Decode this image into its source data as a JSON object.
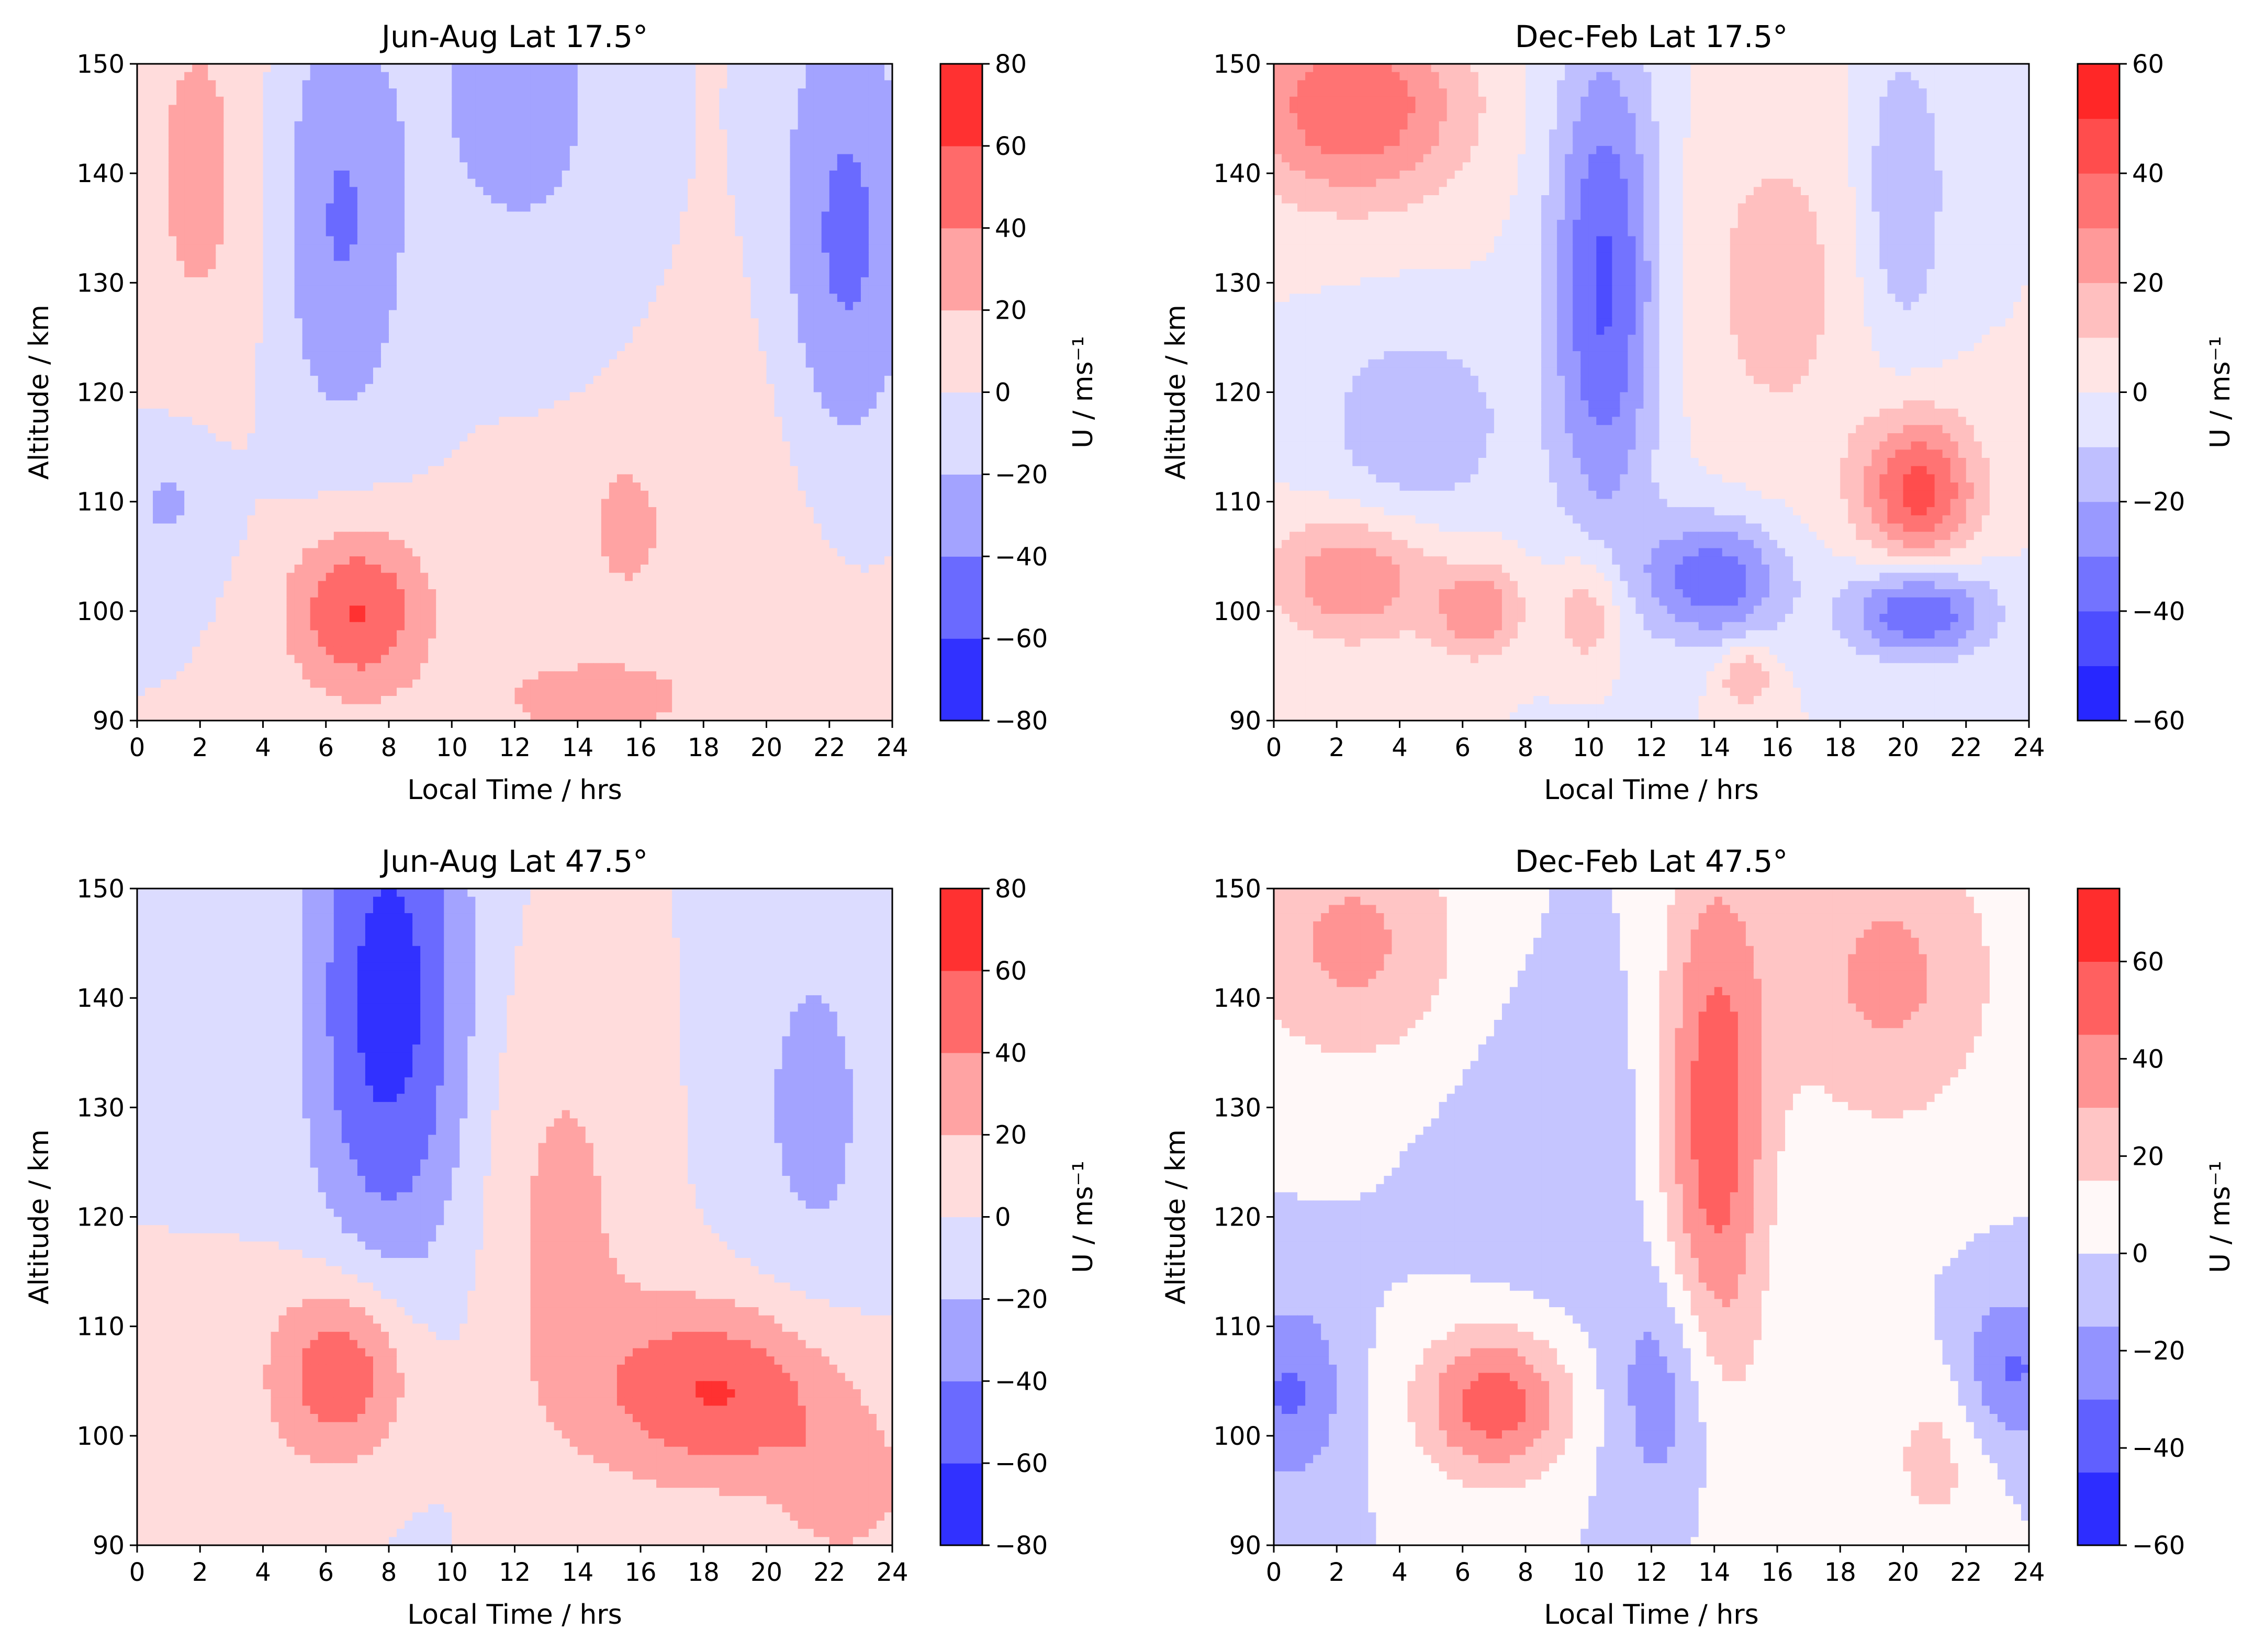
{
  "chart_data": [
    {
      "type": "heatmap",
      "title": "Jun-Aug Lat 17.5°",
      "xlabel": "Local Time / hrs",
      "ylabel": "Altitude / km",
      "colorbar_label": "U / ms⁻¹",
      "xlim": [
        0,
        24
      ],
      "ylim": [
        90,
        150
      ],
      "xticks": [
        0,
        2,
        4,
        6,
        8,
        10,
        12,
        14,
        16,
        18,
        20,
        22,
        24
      ],
      "yticks": [
        90,
        100,
        110,
        120,
        130,
        140,
        150
      ],
      "levels": [
        -80,
        -60,
        -40,
        -20,
        0,
        20,
        40,
        60,
        80
      ],
      "colorbar_ticks": [
        -80,
        -60,
        -40,
        -20,
        0,
        20,
        40,
        60,
        80
      ],
      "features": [
        {
          "x": 7,
          "y": 100,
          "value": 62,
          "sx": 1.6,
          "sy": 5.5
        },
        {
          "x": 6.5,
          "y": 136,
          "value": -42,
          "sx": 1.5,
          "sy": 14
        },
        {
          "x": 22.5,
          "y": 133,
          "value": -52,
          "sx": 1.6,
          "sy": 16
        },
        {
          "x": 12,
          "y": 148,
          "value": -34,
          "sx": 1.8,
          "sy": 10
        },
        {
          "x": 19,
          "y": 115,
          "value": 18,
          "sx": 4,
          "sy": 22
        },
        {
          "x": 2,
          "y": 140,
          "value": 26,
          "sx": 1.5,
          "sy": 14
        },
        {
          "x": 15.5,
          "y": 108,
          "value": 25,
          "sx": 0.7,
          "sy": 4
        },
        {
          "x": 14,
          "y": 92,
          "value": 24,
          "sx": 2.5,
          "sy": 3
        },
        {
          "x": 1,
          "y": 110,
          "value": -24,
          "sx": 1.2,
          "sy": 5
        },
        {
          "x": 16,
          "y": 130,
          "value": -12,
          "sx": 3,
          "sy": 15
        }
      ],
      "colors_used": [
        "#2020ff",
        "#5c5cff",
        "#9a9aff",
        "#dedeff",
        "#ffdede",
        "#ff9a9a",
        "#ff5c5c",
        "#ff2020"
      ]
    },
    {
      "type": "heatmap",
      "title": "Dec-Feb Lat 17.5°",
      "xlabel": "Local Time / hrs",
      "ylabel": "Altitude / km",
      "colorbar_label": "U / ms⁻¹",
      "xlim": [
        0,
        24
      ],
      "ylim": [
        90,
        150
      ],
      "xticks": [
        0,
        2,
        4,
        6,
        8,
        10,
        12,
        14,
        16,
        18,
        20,
        22,
        24
      ],
      "yticks": [
        90,
        100,
        110,
        120,
        130,
        140,
        150
      ],
      "levels": [
        -60,
        -50,
        -40,
        -30,
        -20,
        -10,
        0,
        10,
        20,
        30,
        40,
        50,
        60
      ],
      "colorbar_ticks": [
        -60,
        -40,
        -20,
        0,
        20,
        40,
        60
      ],
      "features": [
        {
          "x": 2.5,
          "y": 146,
          "value": 40,
          "sx": 2.5,
          "sy": 6
        },
        {
          "x": 10.5,
          "y": 130,
          "value": -42,
          "sx": 1.2,
          "sy": 16
        },
        {
          "x": 20.5,
          "y": 111,
          "value": 44,
          "sx": 1.3,
          "sy": 5
        },
        {
          "x": 2.5,
          "y": 103,
          "value": 30,
          "sx": 1.8,
          "sy": 4
        },
        {
          "x": 14,
          "y": 103,
          "value": -38,
          "sx": 1.6,
          "sy": 4
        },
        {
          "x": 20.5,
          "y": 100,
          "value": -42,
          "sx": 1.6,
          "sy": 3
        },
        {
          "x": 4.5,
          "y": 117,
          "value": -20,
          "sx": 2,
          "sy": 6
        },
        {
          "x": 6.5,
          "y": 100,
          "value": 28,
          "sx": 1,
          "sy": 3
        },
        {
          "x": 16,
          "y": 130,
          "value": 14,
          "sx": 2,
          "sy": 12
        },
        {
          "x": 20,
          "y": 138,
          "value": -20,
          "sx": 1,
          "sy": 10
        },
        {
          "x": 10,
          "y": 100,
          "value": 22,
          "sx": 0.8,
          "sy": 4
        },
        {
          "x": 15,
          "y": 94,
          "value": 22,
          "sx": 0.6,
          "sy": 2
        }
      ],
      "colors_used": [
        "#4c4cff",
        "#6a6aff",
        "#8888ff",
        "#b6b6ff",
        "#e2e2ff",
        "#ffe2e2",
        "#ffb6b6",
        "#ff8888",
        "#ff5c5c"
      ]
    },
    {
      "type": "heatmap",
      "title": "Jun-Aug Lat 47.5°",
      "xlabel": "Local Time / hrs",
      "ylabel": "Altitude / km",
      "colorbar_label": "U / ms⁻¹",
      "xlim": [
        0,
        24
      ],
      "ylim": [
        90,
        150
      ],
      "xticks": [
        0,
        2,
        4,
        6,
        8,
        10,
        12,
        14,
        16,
        18,
        20,
        22,
        24
      ],
      "yticks": [
        90,
        100,
        110,
        120,
        130,
        140,
        150
      ],
      "levels": [
        -80,
        -60,
        -40,
        -20,
        0,
        20,
        40,
        60,
        80
      ],
      "colorbar_ticks": [
        -80,
        -60,
        -40,
        -20,
        0,
        20,
        40,
        60,
        80
      ],
      "features": [
        {
          "x": 6.5,
          "y": 106,
          "value": 62,
          "sx": 1.6,
          "sy": 6
        },
        {
          "x": 18.5,
          "y": 104,
          "value": 62,
          "sx": 2.8,
          "sy": 6
        },
        {
          "x": 8,
          "y": 140,
          "value": -70,
          "sx": 1.8,
          "sy": 18
        },
        {
          "x": 13.5,
          "y": 120,
          "value": 25,
          "sx": 1.8,
          "sy": 15
        },
        {
          "x": 21.5,
          "y": 130,
          "value": -25,
          "sx": 1.8,
          "sy": 15
        },
        {
          "x": 1.5,
          "y": 93,
          "value": 18,
          "sx": 2,
          "sy": 6
        },
        {
          "x": 22.5,
          "y": 95,
          "value": 30,
          "sx": 1.5,
          "sy": 5
        }
      ],
      "colors_used": [
        "#2020ff",
        "#5c5cff",
        "#9a9aff",
        "#dedeff",
        "#ffdede",
        "#ff9a9a",
        "#ff5c5c",
        "#ff2020"
      ]
    },
    {
      "type": "heatmap",
      "title": "Dec-Feb Lat 47.5°",
      "xlabel": "Local Time / hrs",
      "ylabel": "Altitude / km",
      "colorbar_label": "U / ms⁻¹",
      "xlim": [
        0,
        24
      ],
      "ylim": [
        90,
        150
      ],
      "xticks": [
        0,
        2,
        4,
        6,
        8,
        10,
        12,
        14,
        16,
        18,
        20,
        22,
        24
      ],
      "yticks": [
        90,
        100,
        110,
        120,
        130,
        140,
        150
      ],
      "levels": [
        -60,
        -45,
        -30,
        -15,
        0,
        15,
        30,
        45,
        60,
        75
      ],
      "colorbar_ticks": [
        -60,
        -40,
        -20,
        0,
        20,
        40,
        60
      ],
      "features": [
        {
          "x": 7,
          "y": 103,
          "value": 55,
          "sx": 1.7,
          "sy": 5
        },
        {
          "x": 14,
          "y": 128,
          "value": 55,
          "sx": 1.2,
          "sy": 18
        },
        {
          "x": 2.5,
          "y": 145,
          "value": 34,
          "sx": 2.5,
          "sy": 8
        },
        {
          "x": 19.5,
          "y": 142,
          "value": 34,
          "sx": 2.5,
          "sy": 10
        },
        {
          "x": 0.5,
          "y": 104,
          "value": -32,
          "sx": 1.2,
          "sy": 6
        },
        {
          "x": 23.5,
          "y": 106,
          "value": -32,
          "sx": 1.2,
          "sy": 5
        },
        {
          "x": 12.5,
          "y": 104,
          "value": -28,
          "sx": 1.2,
          "sy": 8
        },
        {
          "x": 9,
          "y": 125,
          "value": -10,
          "sx": 2.5,
          "sy": 12
        },
        {
          "x": 21,
          "y": 98,
          "value": 20,
          "sx": 1.2,
          "sy": 6
        }
      ],
      "colors_used": [
        "#4c4cff",
        "#7a7aff",
        "#b2b2ff",
        "#e4e4ff",
        "#ffe4e4",
        "#ffb2b2",
        "#ff8080",
        "#ff5050",
        "#ff2020"
      ]
    }
  ]
}
